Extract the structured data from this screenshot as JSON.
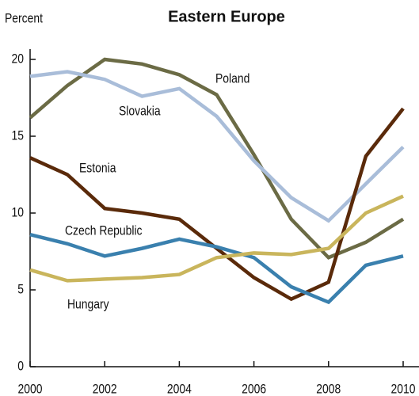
{
  "chart_data": {
    "type": "line",
    "title": "Eastern Europe",
    "y_label": "Percent",
    "x": [
      2000,
      2001,
      2002,
      2003,
      2004,
      2005,
      2006,
      2007,
      2008,
      2009,
      2010
    ],
    "xlim": [
      2000,
      2010
    ],
    "xticks": [
      2000,
      2002,
      2004,
      2006,
      2008,
      2010
    ],
    "ylim": [
      0,
      20
    ],
    "yticks": [
      0,
      5,
      10,
      15,
      20
    ],
    "grid": false,
    "series": [
      {
        "name": "Poland",
        "color": "#6b6b45",
        "values": [
          16.2,
          18.3,
          20.0,
          19.7,
          19.0,
          17.7,
          13.8,
          9.6,
          7.1,
          8.1,
          9.6
        ]
      },
      {
        "name": "Slovakia",
        "color": "#a9bdd9",
        "values": [
          18.9,
          19.2,
          18.7,
          17.6,
          18.1,
          16.3,
          13.4,
          11.0,
          9.5,
          11.9,
          14.3
        ]
      },
      {
        "name": "Estonia",
        "color": "#5a2a0a",
        "values": [
          13.6,
          12.5,
          10.3,
          10.0,
          9.6,
          7.7,
          5.8,
          4.4,
          5.5,
          13.7,
          16.8
        ]
      },
      {
        "name": "Czech Republic",
        "color": "#3a80ae",
        "values": [
          8.6,
          8.0,
          7.2,
          7.7,
          8.3,
          7.8,
          7.1,
          5.2,
          4.2,
          6.6,
          7.2
        ]
      },
      {
        "name": "Hungary",
        "color": "#c9b55c",
        "values": [
          6.3,
          5.6,
          5.7,
          5.8,
          6.0,
          7.1,
          7.4,
          7.3,
          7.7,
          10.0,
          11.1
        ]
      }
    ]
  }
}
